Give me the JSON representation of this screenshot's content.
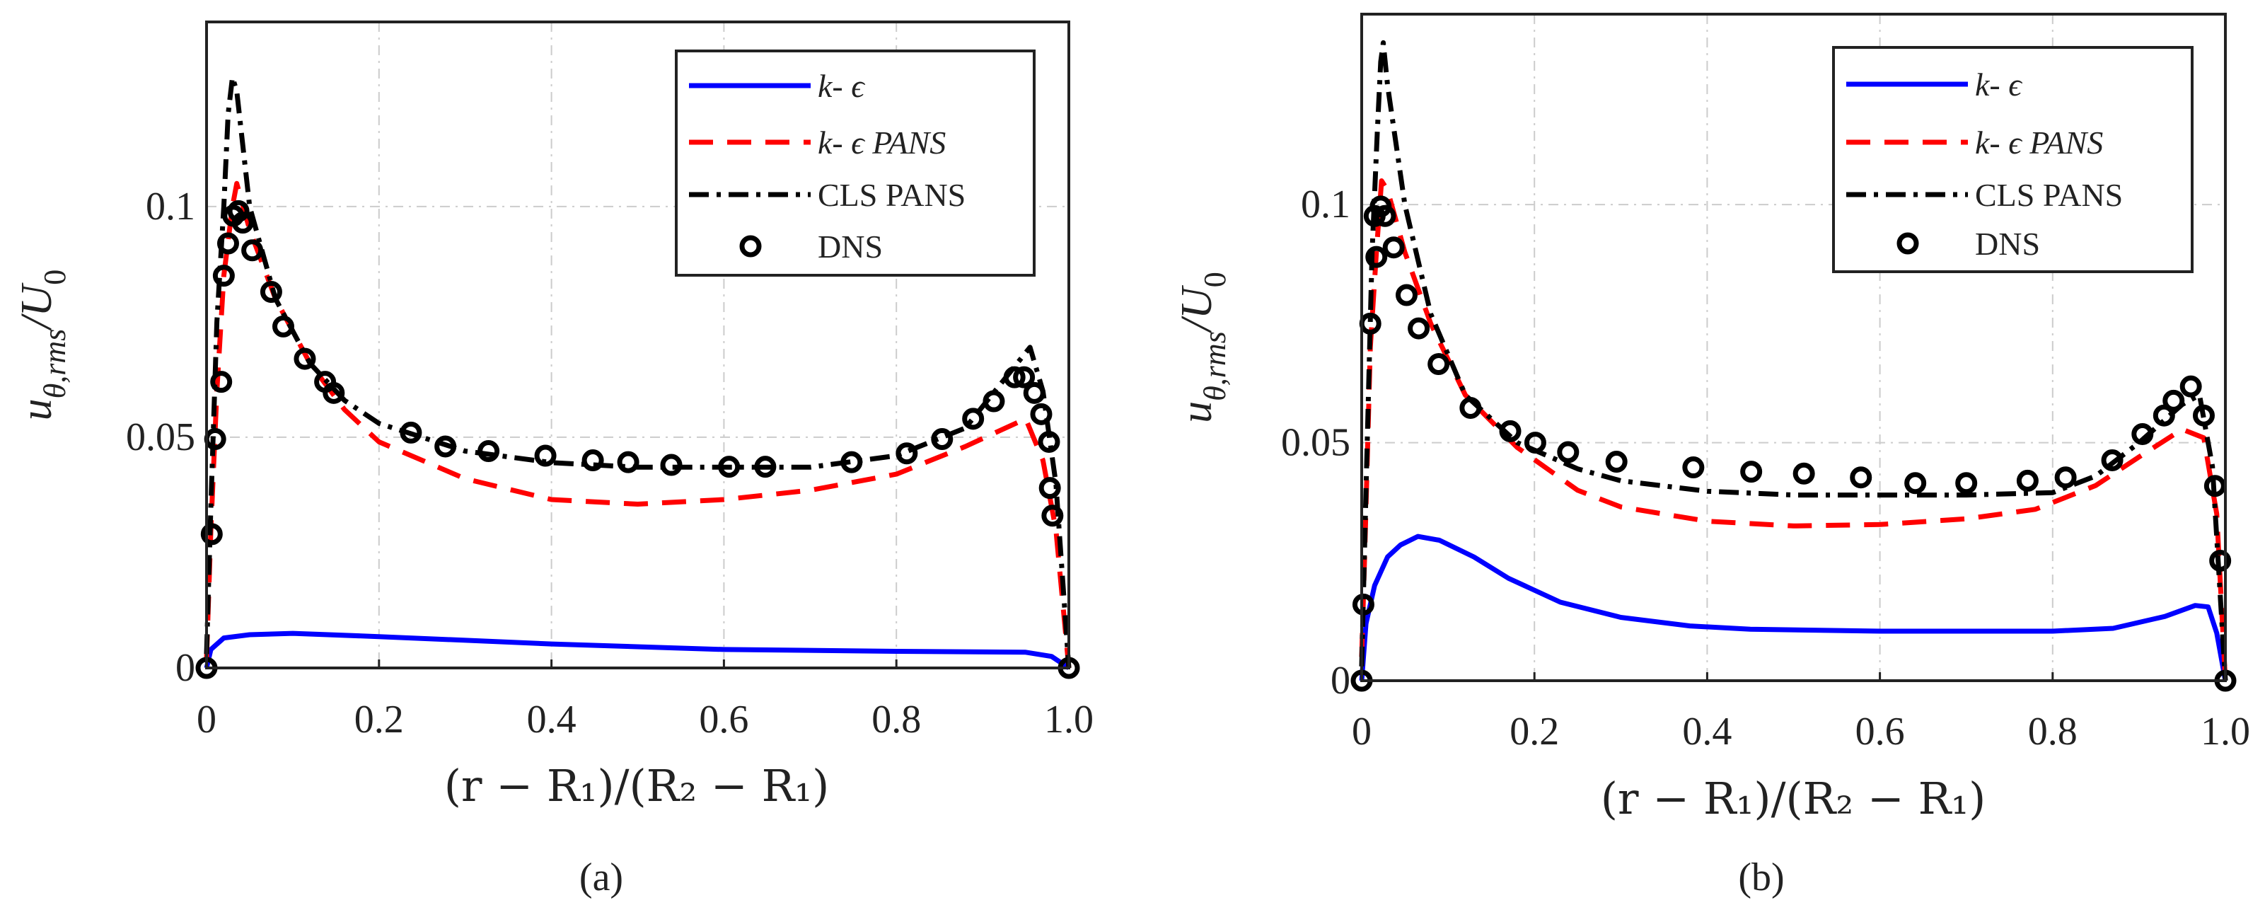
{
  "chart_data": [
    {
      "type": "line",
      "caption": "(a)",
      "xlabel": "(r − R₁)/(R₂ − R₁)",
      "ylabel": "u_{θ,rms}/U_0",
      "ylabel_main": "u",
      "ylabel_sub": "θ,rms",
      "ylabel_rest": "/U",
      "ylabel_sub2": "0",
      "xlim": [
        0,
        1
      ],
      "ylim": [
        0,
        0.14
      ],
      "xticks": [
        0,
        0.2,
        0.4,
        0.6,
        0.8,
        1.0
      ],
      "xtick_labels": [
        "0",
        "0.2",
        "0.4",
        "0.6",
        "0.8",
        "1.0"
      ],
      "yticks": [
        0,
        0.05,
        0.1
      ],
      "ytick_labels": [
        "0",
        "0.05",
        "0.1"
      ],
      "grid": true,
      "legend_position": "top-right",
      "series": [
        {
          "name": "k- ϵ",
          "style": "solid",
          "color": "#0000ff",
          "x": [
            0,
            0.005,
            0.02,
            0.05,
            0.1,
            0.2,
            0.4,
            0.6,
            0.8,
            0.95,
            0.98,
            1
          ],
          "y": [
            0,
            0.004,
            0.0065,
            0.0072,
            0.0075,
            0.0068,
            0.0052,
            0.004,
            0.0036,
            0.0034,
            0.0025,
            0
          ]
        },
        {
          "name": "k- ϵ PANS",
          "style": "dashed",
          "color": "#ff0000",
          "x": [
            0,
            0.005,
            0.012,
            0.02,
            0.03,
            0.035,
            0.05,
            0.08,
            0.12,
            0.16,
            0.2,
            0.3,
            0.4,
            0.5,
            0.6,
            0.7,
            0.8,
            0.88,
            0.95,
            0.97,
            0.985,
            1
          ],
          "y": [
            0.002,
            0.03,
            0.06,
            0.085,
            0.1,
            0.105,
            0.095,
            0.08,
            0.066,
            0.056,
            0.049,
            0.041,
            0.0365,
            0.0355,
            0.0365,
            0.0385,
            0.042,
            0.048,
            0.054,
            0.045,
            0.03,
            0
          ]
        },
        {
          "name": "CLS PANS",
          "style": "dashdot",
          "color": "#000000",
          "x": [
            0,
            0.005,
            0.012,
            0.02,
            0.025,
            0.03,
            0.035,
            0.05,
            0.08,
            0.12,
            0.16,
            0.2,
            0.3,
            0.4,
            0.5,
            0.6,
            0.7,
            0.8,
            0.88,
            0.955,
            0.97,
            0.985,
            1
          ],
          "y": [
            0.003,
            0.035,
            0.075,
            0.1,
            0.12,
            0.128,
            0.125,
            0.1,
            0.08,
            0.066,
            0.058,
            0.053,
            0.047,
            0.0445,
            0.0435,
            0.0435,
            0.0435,
            0.046,
            0.052,
            0.0695,
            0.06,
            0.04,
            0
          ]
        },
        {
          "name": "DNS",
          "style": "markers",
          "color": "#000000",
          "x": [
            0,
            0.006,
            0.01,
            0.017,
            0.02,
            0.025,
            0.031,
            0.037,
            0.042,
            0.053,
            0.075,
            0.089,
            0.114,
            0.1375,
            0.1475,
            0.237,
            0.277,
            0.327,
            0.393,
            0.448,
            0.489,
            0.539,
            0.606,
            0.648,
            0.748,
            0.812,
            0.853,
            0.889,
            0.913,
            0.937,
            0.948,
            0.96,
            0.968,
            0.977,
            0.978,
            0.981,
            1
          ],
          "y": [
            0,
            0.029,
            0.0496,
            0.062,
            0.085,
            0.092,
            0.098,
            0.099,
            0.0965,
            0.0905,
            0.0815,
            0.074,
            0.067,
            0.062,
            0.0596,
            0.051,
            0.048,
            0.047,
            0.046,
            0.045,
            0.0446,
            0.044,
            0.0436,
            0.0436,
            0.0446,
            0.0465,
            0.0496,
            0.054,
            0.0578,
            0.063,
            0.063,
            0.0596,
            0.055,
            0.049,
            0.039,
            0.033,
            0
          ]
        }
      ]
    },
    {
      "type": "line",
      "caption": "(b)",
      "xlabel": "(r − R₁)/(R₂ − R₁)",
      "ylabel": "u_{θ,rms}/U_0",
      "ylabel_main": "u",
      "ylabel_sub": "θ,rms",
      "ylabel_rest": "/U",
      "ylabel_sub2": "0",
      "xlim": [
        0,
        1
      ],
      "ylim": [
        0,
        0.14
      ],
      "xticks": [
        0,
        0.2,
        0.4,
        0.6,
        0.8,
        1.0
      ],
      "xtick_labels": [
        "0",
        "0.2",
        "0.4",
        "0.6",
        "0.8",
        "1.0"
      ],
      "yticks": [
        0,
        0.05,
        0.1
      ],
      "ytick_labels": [
        "0",
        "0.05",
        "0.1"
      ],
      "grid": true,
      "legend_position": "top-right",
      "series": [
        {
          "name": "k- ϵ",
          "style": "solid",
          "color": "#0000ff",
          "x": [
            0,
            0.005,
            0.015,
            0.03,
            0.045,
            0.065,
            0.09,
            0.13,
            0.17,
            0.23,
            0.3,
            0.38,
            0.45,
            0.6,
            0.8,
            0.87,
            0.93,
            0.965,
            0.98,
            0.99,
            1
          ],
          "y": [
            0,
            0.012,
            0.02,
            0.026,
            0.0285,
            0.0303,
            0.0295,
            0.026,
            0.0215,
            0.0165,
            0.0133,
            0.0115,
            0.0108,
            0.0104,
            0.0104,
            0.011,
            0.0135,
            0.0158,
            0.0155,
            0.01,
            0
          ]
        },
        {
          "name": "k- ϵ PANS",
          "style": "dashed",
          "color": "#ff0000",
          "x": [
            0,
            0.004,
            0.01,
            0.017,
            0.023,
            0.03,
            0.05,
            0.08,
            0.12,
            0.18,
            0.25,
            0.3,
            0.4,
            0.5,
            0.6,
            0.7,
            0.78,
            0.85,
            0.9,
            0.95,
            0.975,
            0.99,
            1
          ],
          "y": [
            0.005,
            0.03,
            0.07,
            0.09,
            0.105,
            0.103,
            0.09,
            0.075,
            0.06,
            0.049,
            0.04,
            0.0365,
            0.0335,
            0.0325,
            0.0328,
            0.034,
            0.036,
            0.041,
            0.047,
            0.0528,
            0.051,
            0.035,
            0
          ]
        },
        {
          "name": "CLS PANS",
          "style": "dashdot",
          "color": "#000000",
          "x": [
            0,
            0.005,
            0.012,
            0.018,
            0.022,
            0.025,
            0.03,
            0.05,
            0.08,
            0.12,
            0.18,
            0.25,
            0.3,
            0.4,
            0.5,
            0.6,
            0.7,
            0.8,
            0.85,
            0.9,
            0.95,
            0.97,
            0.985,
            1
          ],
          "y": [
            0.003,
            0.04,
            0.09,
            0.115,
            0.13,
            0.134,
            0.125,
            0.1,
            0.077,
            0.06,
            0.05,
            0.0445,
            0.042,
            0.0398,
            0.039,
            0.039,
            0.039,
            0.0395,
            0.043,
            0.05,
            0.058,
            0.06,
            0.045,
            0
          ]
        },
        {
          "name": "DNS",
          "style": "markers",
          "color": "#000000",
          "x": [
            0,
            0.002,
            0.01,
            0.017,
            0.015,
            0.022,
            0.027,
            0.037,
            0.052,
            0.066,
            0.089,
            0.126,
            0.172,
            0.201,
            0.239,
            0.295,
            0.384,
            0.451,
            0.512,
            0.578,
            0.641,
            0.7,
            0.771,
            0.815,
            0.869,
            0.904,
            0.929,
            0.94,
            0.96,
            0.975,
            0.988,
            0.994,
            1
          ],
          "y": [
            0,
            0.016,
            0.075,
            0.089,
            0.0976,
            0.0996,
            0.0976,
            0.091,
            0.081,
            0.074,
            0.0665,
            0.0573,
            0.0524,
            0.05,
            0.048,
            0.046,
            0.0448,
            0.0439,
            0.0435,
            0.0427,
            0.0415,
            0.0415,
            0.042,
            0.0427,
            0.0463,
            0.0518,
            0.0557,
            0.0588,
            0.0618,
            0.0557,
            0.0409,
            0.0252,
            0
          ]
        }
      ]
    }
  ]
}
